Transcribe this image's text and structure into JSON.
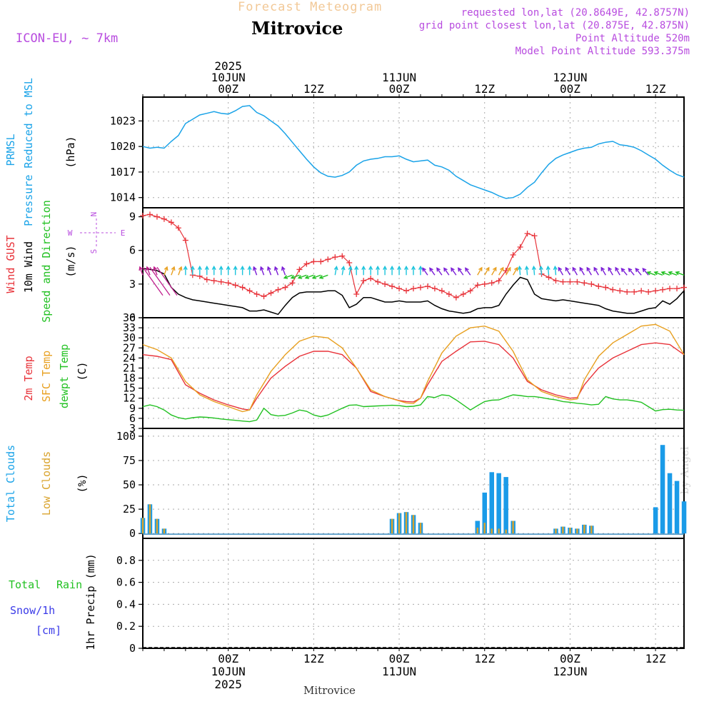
{
  "header": {
    "title": "Forecast Meteogram",
    "location": "Mitrovice",
    "model": "ICON-EU, ~ 7km",
    "requested": "requested lon,lat (20.8649E, 42.8757N)",
    "grid_point": "grid point closest lon,lat (20.875E, 42.875N)",
    "point_altitude": "Point Altitude 520m",
    "model_altitude": "Model Point Altitude 593.375m",
    "footer_location": "Mitrovice",
    "watermark": "by Angel"
  },
  "time_axis": {
    "top_labels": [
      {
        "hour": 12,
        "lines": [
          "2025",
          "10JUN",
          "00Z"
        ]
      },
      {
        "hour": 24,
        "lines": [
          "12Z"
        ]
      },
      {
        "hour": 36,
        "lines": [
          "11JUN",
          "00Z"
        ]
      },
      {
        "hour": 48,
        "lines": [
          "12Z"
        ]
      },
      {
        "hour": 60,
        "lines": [
          "12JUN",
          "00Z"
        ]
      },
      {
        "hour": 72,
        "lines": [
          "12Z"
        ]
      }
    ],
    "bottom_labels": [
      {
        "hour": 12,
        "lines": [
          "00Z",
          "10JUN",
          "2025"
        ]
      },
      {
        "hour": 24,
        "lines": [
          "12Z"
        ]
      },
      {
        "hour": 36,
        "lines": [
          "00Z",
          "11JUN"
        ]
      },
      {
        "hour": 48,
        "lines": [
          "12Z"
        ]
      },
      {
        "hour": 60,
        "lines": [
          "00Z",
          "12JUN"
        ]
      },
      {
        "hour": 72,
        "lines": [
          "12Z"
        ]
      }
    ]
  },
  "chart_data": [
    {
      "type": "line",
      "panel": "pressure",
      "labels": [
        "PRMSL",
        "Pressure Reduced to MSL"
      ],
      "unit": "(hPa)",
      "ylim": [
        1012.8,
        1025.8
      ],
      "yticks": [
        1014,
        1017,
        1020,
        1023
      ],
      "xlim": [
        0,
        76
      ],
      "series": [
        {
          "color": "#1aa3e8",
          "x": [
            0,
            1,
            2,
            3,
            4,
            5,
            6,
            7,
            8,
            9,
            10,
            11,
            12,
            13,
            14,
            15,
            16,
            17,
            18,
            19,
            20,
            21,
            22,
            23,
            24,
            25,
            26,
            27,
            28,
            29,
            30,
            31,
            32,
            33,
            34,
            35,
            36,
            37,
            38,
            39,
            40,
            41,
            42,
            43,
            44,
            45,
            46,
            47,
            48,
            49,
            50,
            51,
            52,
            53,
            54,
            55,
            56,
            57,
            58,
            59,
            60,
            61,
            62,
            63,
            64,
            65,
            66,
            67,
            68,
            69,
            70,
            71,
            72,
            73,
            74,
            75,
            76
          ],
          "y": [
            1020.0,
            1019.8,
            1019.9,
            1019.8,
            1020.6,
            1021.3,
            1022.7,
            1023.2,
            1023.7,
            1023.9,
            1024.1,
            1023.9,
            1023.8,
            1024.2,
            1024.7,
            1024.8,
            1024.0,
            1023.6,
            1023.0,
            1022.4,
            1021.5,
            1020.5,
            1019.5,
            1018.5,
            1017.6,
            1016.9,
            1016.5,
            1016.4,
            1016.6,
            1017.0,
            1017.8,
            1018.3,
            1018.5,
            1018.6,
            1018.8,
            1018.8,
            1018.9,
            1018.5,
            1018.2,
            1018.3,
            1018.4,
            1017.8,
            1017.6,
            1017.2,
            1016.5,
            1016.0,
            1015.5,
            1015.2,
            1014.9,
            1014.6,
            1014.2,
            1013.9,
            1014.0,
            1014.4,
            1015.2,
            1015.8,
            1016.9,
            1017.9,
            1018.6,
            1019.0,
            1019.3,
            1019.6,
            1019.8,
            1019.9,
            1020.3,
            1020.5,
            1020.6,
            1020.2,
            1020.1,
            1019.9,
            1019.5,
            1019.0,
            1018.5,
            1017.8,
            1017.2,
            1016.7,
            1016.4
          ]
        }
      ]
    },
    {
      "type": "line",
      "panel": "wind",
      "labels": [
        "Wind GUST",
        "10m Wind",
        "Speed and Direction"
      ],
      "unit": "(m/s)",
      "compass": {
        "n": "N",
        "s": "S",
        "w": "W",
        "e": "E"
      },
      "ylim": [
        0,
        9.8
      ],
      "yticks": [
        0,
        3,
        6,
        9
      ],
      "xlim": [
        0,
        76
      ],
      "series": [
        {
          "color": "#e8333a",
          "marker": "+",
          "x": [
            0,
            1,
            2,
            3,
            4,
            5,
            6,
            7,
            8,
            9,
            10,
            11,
            12,
            13,
            14,
            15,
            16,
            17,
            18,
            19,
            20,
            21,
            22,
            23,
            24,
            25,
            26,
            27,
            28,
            29,
            30,
            31,
            32,
            33,
            34,
            35,
            36,
            37,
            38,
            39,
            40,
            41,
            42,
            43,
            44,
            45,
            46,
            47,
            48,
            49,
            50,
            51,
            52,
            53,
            54,
            55,
            56,
            57,
            58,
            59,
            60,
            61,
            62,
            63,
            64,
            65,
            66,
            67,
            68,
            69,
            70,
            71,
            72,
            73,
            74,
            75,
            76
          ],
          "y": [
            9.1,
            9.2,
            9.0,
            8.8,
            8.5,
            8.0,
            6.9,
            3.8,
            3.7,
            3.4,
            3.3,
            3.2,
            3.1,
            2.9,
            2.7,
            2.4,
            2.1,
            1.9,
            2.2,
            2.5,
            2.7,
            3.1,
            4.3,
            4.8,
            5.0,
            5.0,
            5.2,
            5.4,
            5.5,
            4.9,
            2.1,
            3.3,
            3.5,
            3.2,
            3.0,
            2.8,
            2.6,
            2.4,
            2.6,
            2.7,
            2.8,
            2.6,
            2.4,
            2.1,
            1.8,
            2.1,
            2.4,
            2.9,
            3.0,
            3.1,
            3.3,
            4.2,
            5.6,
            6.3,
            7.5,
            7.3,
            3.9,
            3.6,
            3.3,
            3.2,
            3.2,
            3.2,
            3.1,
            3.0,
            2.8,
            2.7,
            2.5,
            2.4,
            2.3,
            2.3,
            2.4,
            2.3,
            2.4,
            2.5,
            2.6,
            2.6,
            2.7
          ]
        },
        {
          "color": "#000000",
          "x": [
            0,
            1,
            2,
            3,
            4,
            5,
            6,
            7,
            8,
            9,
            10,
            11,
            12,
            13,
            14,
            15,
            16,
            17,
            18,
            19,
            20,
            21,
            22,
            23,
            24,
            25,
            26,
            27,
            28,
            29,
            30,
            31,
            32,
            33,
            34,
            35,
            36,
            37,
            38,
            39,
            40,
            41,
            42,
            43,
            44,
            45,
            46,
            47,
            48,
            49,
            50,
            51,
            52,
            53,
            54,
            55,
            56,
            57,
            58,
            59,
            60,
            61,
            62,
            63,
            64,
            65,
            66,
            67,
            68,
            69,
            70,
            71,
            72,
            73,
            74,
            75,
            76
          ],
          "y": [
            4.4,
            4.3,
            4.2,
            3.9,
            2.7,
            2.1,
            1.8,
            1.6,
            1.5,
            1.4,
            1.3,
            1.2,
            1.1,
            1.0,
            0.9,
            0.6,
            0.6,
            0.7,
            0.5,
            0.3,
            1.1,
            1.8,
            2.2,
            2.3,
            2.3,
            2.3,
            2.4,
            2.4,
            2.0,
            0.9,
            1.2,
            1.8,
            1.8,
            1.6,
            1.4,
            1.4,
            1.5,
            1.4,
            1.4,
            1.4,
            1.5,
            1.1,
            0.8,
            0.6,
            0.5,
            0.4,
            0.5,
            0.8,
            0.9,
            0.9,
            1.1,
            2.1,
            2.9,
            3.6,
            3.4,
            2.1,
            1.7,
            1.6,
            1.5,
            1.6,
            1.5,
            1.4,
            1.3,
            1.2,
            1.1,
            0.8,
            0.6,
            0.5,
            0.4,
            0.4,
            0.6,
            0.8,
            0.9,
            1.5,
            1.2,
            1.7,
            2.4
          ]
        }
      ],
      "arrows_note": "wind direction arrows coloured by speed",
      "arrow_colors": [
        "#c0208e",
        "#1cc4dc",
        "#7a1cd6",
        "#22c122",
        "#e8a020"
      ]
    },
    {
      "type": "line",
      "panel": "temperature",
      "labels": [
        "2m Temp",
        "SFC Temp",
        "dewpt Temp"
      ],
      "unit": "(C)",
      "ylim": [
        3,
        36
      ],
      "yticks": [
        3,
        6,
        9,
        12,
        15,
        18,
        21,
        24,
        27,
        30,
        33,
        36
      ],
      "xlim": [
        0,
        76
      ],
      "series": [
        {
          "color": "#e8333a",
          "x": [
            0,
            2,
            4,
            6,
            8,
            10,
            12,
            14,
            15,
            16,
            18,
            20,
            22,
            24,
            26,
            28,
            30,
            32,
            34,
            36,
            37,
            38,
            39,
            40,
            42,
            44,
            46,
            48,
            50,
            52,
            54,
            56,
            58,
            60,
            61,
            62,
            63,
            64,
            66,
            68,
            70,
            72,
            74,
            76
          ],
          "y": [
            25,
            24.5,
            23.5,
            16,
            13.5,
            11.5,
            10,
            8.8,
            8.5,
            12,
            18,
            21.5,
            24.5,
            26,
            26,
            25,
            21,
            14,
            12.5,
            11.3,
            11,
            10.9,
            12,
            16,
            23,
            26,
            28.8,
            29,
            28,
            24,
            17,
            14.5,
            13,
            12,
            12.2,
            16,
            18.5,
            21,
            24,
            26,
            28,
            28.5,
            28,
            25
          ]
        },
        {
          "color": "#e8a020",
          "x": [
            0,
            2,
            4,
            6,
            8,
            10,
            12,
            14,
            15,
            16,
            18,
            20,
            22,
            24,
            26,
            28,
            30,
            32,
            34,
            36,
            37,
            38,
            39,
            40,
            42,
            44,
            46,
            48,
            50,
            52,
            54,
            56,
            58,
            60,
            61,
            62,
            63,
            64,
            66,
            68,
            70,
            72,
            74,
            76
          ],
          "y": [
            28,
            26.5,
            24,
            17,
            13,
            11,
            9.5,
            8,
            8.5,
            13,
            20,
            25,
            29,
            30.5,
            30,
            27,
            21,
            14.5,
            12.5,
            11.2,
            10.6,
            10.4,
            12,
            17,
            25.5,
            30.5,
            33,
            33.5,
            32,
            26,
            17.5,
            14,
            12.5,
            11.5,
            11.8,
            17.5,
            21,
            24.5,
            28.5,
            31,
            33.5,
            34,
            32,
            25
          ]
        },
        {
          "color": "#22c122",
          "x": [
            0,
            1,
            2,
            3,
            4,
            5,
            6,
            7,
            8,
            9,
            10,
            11,
            12,
            13,
            14,
            15,
            16,
            17,
            18,
            19,
            20,
            21,
            22,
            23,
            24,
            25,
            26,
            27,
            28,
            29,
            30,
            31,
            32,
            33,
            34,
            35,
            36,
            37,
            38,
            39,
            40,
            41,
            42,
            43,
            44,
            45,
            46,
            47,
            48,
            49,
            50,
            51,
            52,
            53,
            54,
            55,
            56,
            57,
            58,
            59,
            60,
            61,
            62,
            63,
            64,
            65,
            66,
            67,
            68,
            69,
            70,
            71,
            72,
            73,
            74,
            75,
            76
          ],
          "y": [
            9.5,
            10,
            9.5,
            8.5,
            7,
            6.2,
            5.8,
            6.2,
            6.4,
            6.3,
            6.1,
            5.8,
            5.6,
            5.4,
            5.2,
            5,
            5.5,
            9,
            7.1,
            6.7,
            6.9,
            7.6,
            8.5,
            8.1,
            7,
            6.5,
            7,
            8,
            9,
            9.9,
            10,
            9.5,
            9.6,
            9.7,
            9.8,
            9.9,
            9.8,
            9.5,
            9.6,
            10,
            12.5,
            12.2,
            13,
            12.8,
            11.5,
            10,
            8.5,
            9.8,
            11,
            11.4,
            11.5,
            12.3,
            13,
            12.8,
            12.5,
            12.5,
            12.2,
            11.8,
            11.5,
            11,
            10.8,
            10.5,
            10.3,
            10,
            10.2,
            12.5,
            11.8,
            11.5,
            11.5,
            11.2,
            10.8,
            9.5,
            8.2,
            8.6,
            8.7,
            8.5,
            8.4
          ]
        }
      ]
    },
    {
      "type": "bar",
      "panel": "clouds",
      "labels": [
        "Total Clouds",
        "Low Clouds"
      ],
      "unit": "(%)",
      "ylim": [
        -5,
        108
      ],
      "yticks": [
        0,
        25,
        50,
        75,
        100
      ],
      "xlim": [
        0,
        76
      ],
      "series": [
        {
          "name": "Total Clouds",
          "color": "#1a9be8",
          "x": [
            0,
            1,
            2,
            3,
            35,
            36,
            37,
            38,
            39,
            47,
            48,
            49,
            50,
            51,
            52,
            58,
            59,
            60,
            61,
            62,
            63,
            72,
            73,
            74,
            75,
            76
          ],
          "y": [
            16,
            30,
            15,
            5,
            15,
            21,
            22,
            19,
            11,
            13,
            42,
            63,
            62,
            58,
            13,
            5,
            7,
            6,
            5,
            9,
            8,
            27,
            91,
            62,
            54,
            33
          ]
        },
        {
          "name": "Low Clouds",
          "color": "#d9a32c",
          "x": [
            0,
            1,
            2,
            3,
            35,
            36,
            37,
            38,
            39,
            47,
            48,
            49,
            50,
            51,
            52,
            58,
            59,
            60,
            61,
            62,
            63
          ],
          "y": [
            16,
            30,
            15,
            5,
            15,
            21,
            22,
            19,
            11,
            6,
            11,
            5,
            5,
            4,
            13,
            5,
            7,
            6,
            5,
            9,
            8
          ]
        }
      ]
    },
    {
      "type": "line",
      "panel": "precip",
      "labels": [
        "Total",
        "Rain",
        "Snow/1h",
        "[cm]",
        "1hr Precip (mm)"
      ],
      "ylim": [
        0,
        1.0
      ],
      "yticks": [
        0,
        0.2,
        0.4,
        0.6,
        0.8
      ],
      "xlim": [
        0,
        76
      ],
      "series": []
    }
  ]
}
